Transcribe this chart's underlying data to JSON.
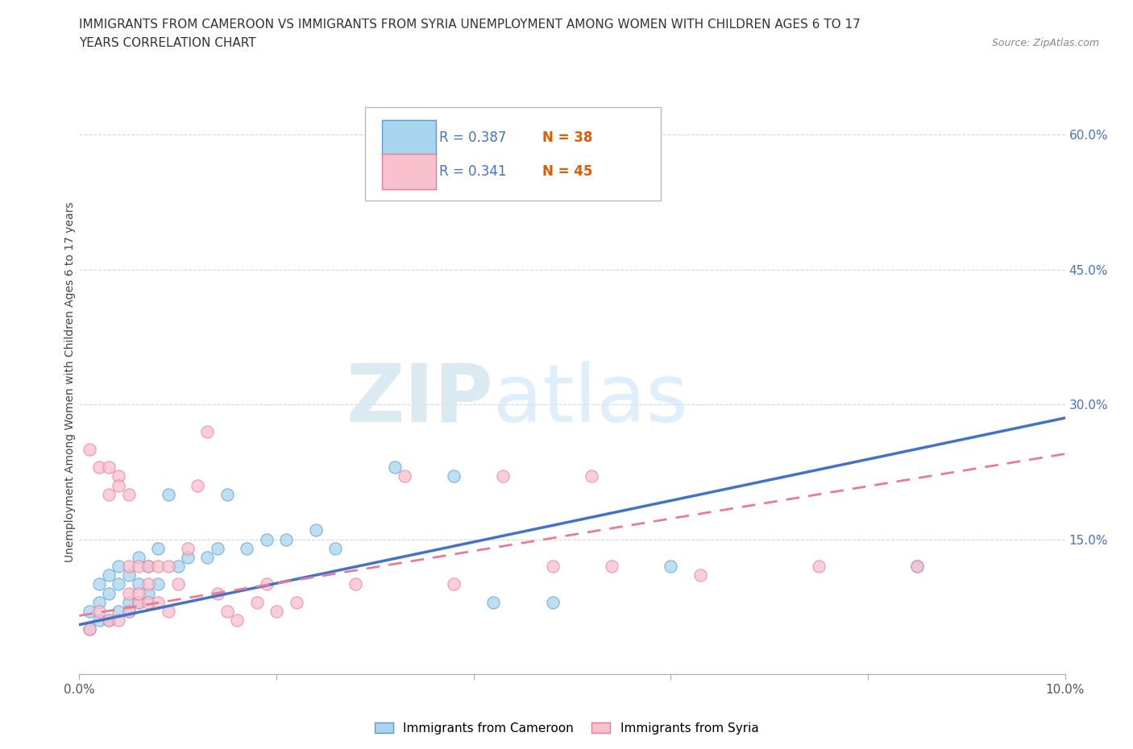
{
  "title_line1": "IMMIGRANTS FROM CAMEROON VS IMMIGRANTS FROM SYRIA UNEMPLOYMENT AMONG WOMEN WITH CHILDREN AGES 6 TO 17",
  "title_line2": "YEARS CORRELATION CHART",
  "source": "Source: ZipAtlas.com",
  "ylabel": "Unemployment Among Women with Children Ages 6 to 17 years",
  "xlim": [
    0.0,
    0.1
  ],
  "ylim": [
    0.0,
    0.65
  ],
  "xticks": [
    0.0,
    0.02,
    0.04,
    0.06,
    0.08,
    0.1
  ],
  "yticks": [
    0.0,
    0.15,
    0.3,
    0.45,
    0.6
  ],
  "color_cameroon": "#a8d4ee",
  "color_syria": "#f9c0cd",
  "edge_cameroon": "#5b9bd5",
  "edge_syria": "#e87a9a",
  "line_color_cameroon": "#4472c4",
  "line_color_syria": "#e87a9a",
  "R_cameroon": 0.387,
  "N_cameroon": 38,
  "R_syria": 0.341,
  "N_syria": 45,
  "cameroon_x": [
    0.001,
    0.001,
    0.002,
    0.002,
    0.002,
    0.003,
    0.003,
    0.003,
    0.004,
    0.004,
    0.004,
    0.005,
    0.005,
    0.005,
    0.006,
    0.006,
    0.006,
    0.007,
    0.007,
    0.008,
    0.008,
    0.009,
    0.01,
    0.011,
    0.013,
    0.014,
    0.015,
    0.017,
    0.019,
    0.021,
    0.024,
    0.026,
    0.032,
    0.038,
    0.042,
    0.048,
    0.06,
    0.085
  ],
  "cameroon_y": [
    0.05,
    0.07,
    0.06,
    0.08,
    0.1,
    0.06,
    0.09,
    0.11,
    0.07,
    0.1,
    0.12,
    0.07,
    0.08,
    0.11,
    0.08,
    0.1,
    0.13,
    0.09,
    0.12,
    0.1,
    0.14,
    0.2,
    0.12,
    0.13,
    0.13,
    0.14,
    0.2,
    0.14,
    0.15,
    0.15,
    0.16,
    0.14,
    0.23,
    0.22,
    0.08,
    0.08,
    0.12,
    0.12
  ],
  "syria_x": [
    0.001,
    0.001,
    0.002,
    0.002,
    0.003,
    0.003,
    0.003,
    0.004,
    0.004,
    0.004,
    0.005,
    0.005,
    0.005,
    0.005,
    0.006,
    0.006,
    0.006,
    0.007,
    0.007,
    0.007,
    0.008,
    0.008,
    0.009,
    0.009,
    0.01,
    0.011,
    0.012,
    0.013,
    0.014,
    0.015,
    0.016,
    0.018,
    0.019,
    0.02,
    0.022,
    0.028,
    0.033,
    0.038,
    0.043,
    0.048,
    0.052,
    0.054,
    0.063,
    0.075,
    0.085
  ],
  "syria_y": [
    0.05,
    0.25,
    0.07,
    0.23,
    0.06,
    0.2,
    0.23,
    0.06,
    0.22,
    0.21,
    0.07,
    0.09,
    0.12,
    0.2,
    0.08,
    0.09,
    0.12,
    0.08,
    0.1,
    0.12,
    0.08,
    0.12,
    0.07,
    0.12,
    0.1,
    0.14,
    0.21,
    0.27,
    0.09,
    0.07,
    0.06,
    0.08,
    0.1,
    0.07,
    0.08,
    0.1,
    0.22,
    0.1,
    0.22,
    0.12,
    0.22,
    0.12,
    0.11,
    0.12,
    0.12
  ],
  "trend_cam_x0": 0.0,
  "trend_cam_y0": 0.055,
  "trend_cam_x1": 0.1,
  "trend_cam_y1": 0.285,
  "trend_syr_x0": 0.0,
  "trend_syr_y0": 0.065,
  "trend_syr_x1": 0.1,
  "trend_syr_y1": 0.245
}
